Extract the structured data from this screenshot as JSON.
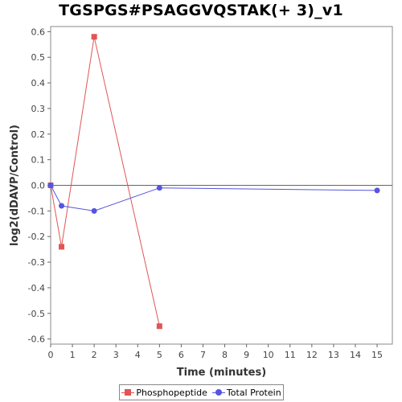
{
  "chart_data": {
    "type": "line",
    "title": "TGSPGS#PSAGGVQSTAK(+ 3)_v1",
    "xlabel": "Time (minutes)",
    "ylabel": "log2(dDAVP/Control)",
    "xlim": [
      0,
      15.7
    ],
    "ylim": [
      -0.62,
      0.62
    ],
    "xticks": [
      0,
      1,
      2,
      3,
      4,
      5,
      6,
      7,
      8,
      9,
      10,
      11,
      12,
      13,
      14,
      15
    ],
    "yticks": [
      0.6,
      0.5,
      0.4,
      0.3,
      0.2,
      0.1,
      0.0,
      -0.1,
      -0.2,
      -0.3,
      -0.4,
      -0.5,
      -0.6
    ],
    "ytick_labels": [
      "0.6",
      "0.5",
      "0.4",
      "0.3",
      "0.2",
      "0.1",
      "0.0",
      "-0.1",
      "-0.2",
      "-0.3",
      "-0.4",
      "-0.5",
      "-0.6"
    ],
    "zero_line": true,
    "grid": false,
    "legend_position": "bottom",
    "series": [
      {
        "name": "Phosphopeptide",
        "color": "#e05555",
        "marker": "square",
        "x": [
          0,
          0.5,
          2,
          5
        ],
        "y": [
          0.0,
          -0.24,
          0.58,
          -0.55
        ]
      },
      {
        "name": "Total Protein",
        "color": "#5555e0",
        "marker": "circle",
        "x": [
          0,
          0.5,
          2,
          5,
          15
        ],
        "y": [
          0.0,
          -0.08,
          -0.1,
          -0.01,
          -0.02
        ]
      }
    ]
  }
}
